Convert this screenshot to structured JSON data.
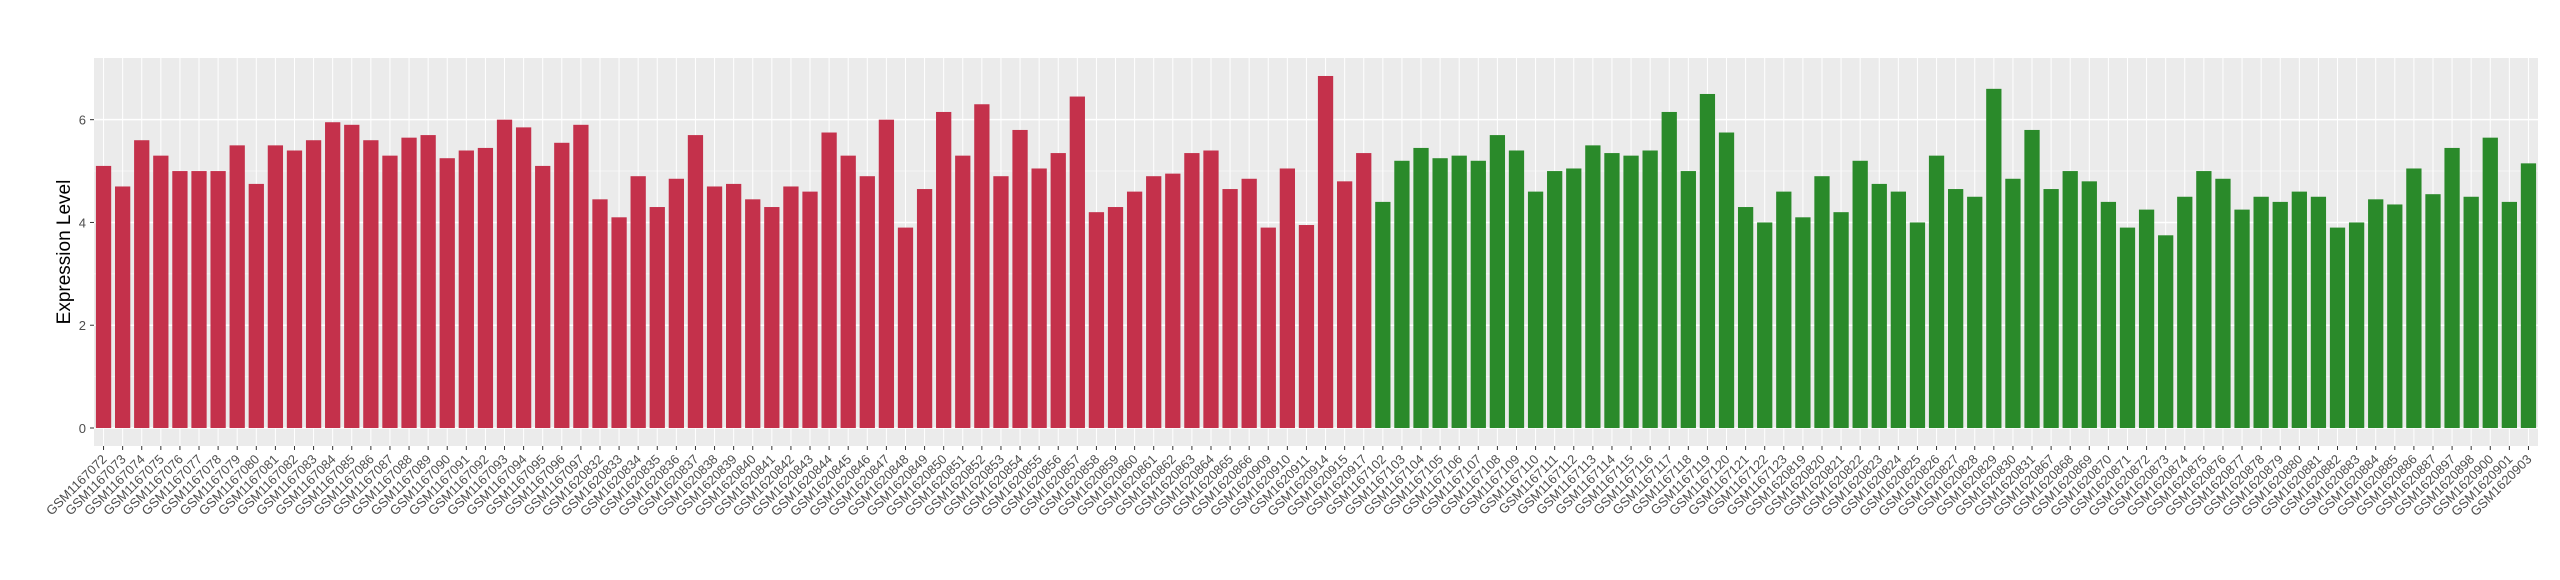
{
  "chart_data": {
    "type": "bar",
    "ylabel": "Expression Level",
    "ylim": [
      -0.35,
      7.2
    ],
    "yticks": [
      0,
      2,
      4,
      6
    ],
    "grid": true,
    "series": [
      {
        "color": "#c4314b",
        "categories": [
          "GSM1167072",
          "GSM1167073",
          "GSM1167074",
          "GSM1167075",
          "GSM1167076",
          "GSM1167077",
          "GSM1167078",
          "GSM1167079",
          "GSM1167080",
          "GSM1167081",
          "GSM1167082",
          "GSM1167083",
          "GSM1167084",
          "GSM1167085",
          "GSM1167086",
          "GSM1167087",
          "GSM1167088",
          "GSM1167089",
          "GSM1167090",
          "GSM1167091",
          "GSM1167092",
          "GSM1167093",
          "GSM1167094",
          "GSM1167095",
          "GSM1167096",
          "GSM1167097",
          "GSM1620832",
          "GSM1620833",
          "GSM1620834",
          "GSM1620835",
          "GSM1620836",
          "GSM1620837",
          "GSM1620838",
          "GSM1620839",
          "GSM1620840",
          "GSM1620841",
          "GSM1620842",
          "GSM1620843",
          "GSM1620844",
          "GSM1620845",
          "GSM1620846",
          "GSM1620847",
          "GSM1620848",
          "GSM1620849",
          "GSM1620850",
          "GSM1620851",
          "GSM1620852",
          "GSM1620853",
          "GSM1620854",
          "GSM1620855",
          "GSM1620856",
          "GSM1620857",
          "GSM1620858",
          "GSM1620859",
          "GSM1620860",
          "GSM1620861",
          "GSM1620862",
          "GSM1620863",
          "GSM1620864",
          "GSM1620865",
          "GSM1620866",
          "GSM1620909",
          "GSM1620910",
          "GSM1620911",
          "GSM1620914",
          "GSM1620915",
          "GSM1620917"
        ],
        "values": [
          5.1,
          4.7,
          5.6,
          5.3,
          5.0,
          5.0,
          5.0,
          5.5,
          4.75,
          5.5,
          5.4,
          5.6,
          5.95,
          5.9,
          5.6,
          5.3,
          5.65,
          5.7,
          5.25,
          5.4,
          5.45,
          6.0,
          5.85,
          5.1,
          5.55,
          5.9,
          4.45,
          4.1,
          4.9,
          4.3,
          4.85,
          5.7,
          4.7,
          4.75,
          4.45,
          4.3,
          4.7,
          4.6,
          5.75,
          5.3,
          4.9,
          6.0,
          3.9,
          4.65,
          6.15,
          5.3,
          6.3,
          4.9,
          5.8,
          5.05,
          5.35,
          6.45,
          4.2,
          4.3,
          4.6,
          4.9,
          4.95,
          5.35,
          5.4,
          4.65,
          4.85,
          3.9,
          5.05,
          3.95,
          6.85,
          4.8,
          5.35
        ]
      },
      {
        "color": "#2a8a2a",
        "categories": [
          "GSM1167102",
          "GSM1167103",
          "GSM1167104",
          "GSM1167105",
          "GSM1167106",
          "GSM1167107",
          "GSM1167108",
          "GSM1167109",
          "GSM1167110",
          "GSM1167111",
          "GSM1167112",
          "GSM1167113",
          "GSM1167114",
          "GSM1167115",
          "GSM1167116",
          "GSM1167117",
          "GSM1167118",
          "GSM1167119",
          "GSM1167120",
          "GSM1167121",
          "GSM1167122",
          "GSM1167123",
          "GSM1620819",
          "GSM1620820",
          "GSM1620821",
          "GSM1620822",
          "GSM1620823",
          "GSM1620824",
          "GSM1620825",
          "GSM1620826",
          "GSM1620827",
          "GSM1620828",
          "GSM1620829",
          "GSM1620830",
          "GSM1620831",
          "GSM1620867",
          "GSM1620868",
          "GSM1620869",
          "GSM1620870",
          "GSM1620871",
          "GSM1620872",
          "GSM1620873",
          "GSM1620874",
          "GSM1620875",
          "GSM1620876",
          "GSM1620877",
          "GSM1620878",
          "GSM1620879",
          "GSM1620880",
          "GSM1620881",
          "GSM1620882",
          "GSM1620883",
          "GSM1620884",
          "GSM1620885",
          "GSM1620886",
          "GSM1620887",
          "GSM1620897",
          "GSM1620898",
          "GSM1620900",
          "GSM1620901",
          "GSM1620903"
        ],
        "values": [
          4.4,
          5.2,
          5.45,
          5.25,
          5.3,
          5.2,
          5.7,
          5.4,
          4.6,
          5.0,
          5.05,
          5.5,
          5.35,
          5.3,
          5.4,
          6.15,
          5.0,
          6.5,
          5.75,
          4.3,
          4.0,
          4.6,
          4.1,
          4.9,
          4.2,
          5.2,
          4.75,
          4.6,
          4.0,
          5.3,
          4.65,
          4.5,
          6.6,
          4.85,
          5.8,
          4.65,
          5.0,
          4.8,
          4.4,
          3.9,
          4.25,
          3.75,
          4.5,
          5.0,
          4.85,
          4.25,
          4.5,
          4.4,
          4.6,
          4.5,
          3.9,
          4.0,
          4.45,
          4.35,
          5.05,
          4.55,
          5.45,
          4.5,
          5.65,
          4.4,
          5.15
        ]
      }
    ]
  }
}
